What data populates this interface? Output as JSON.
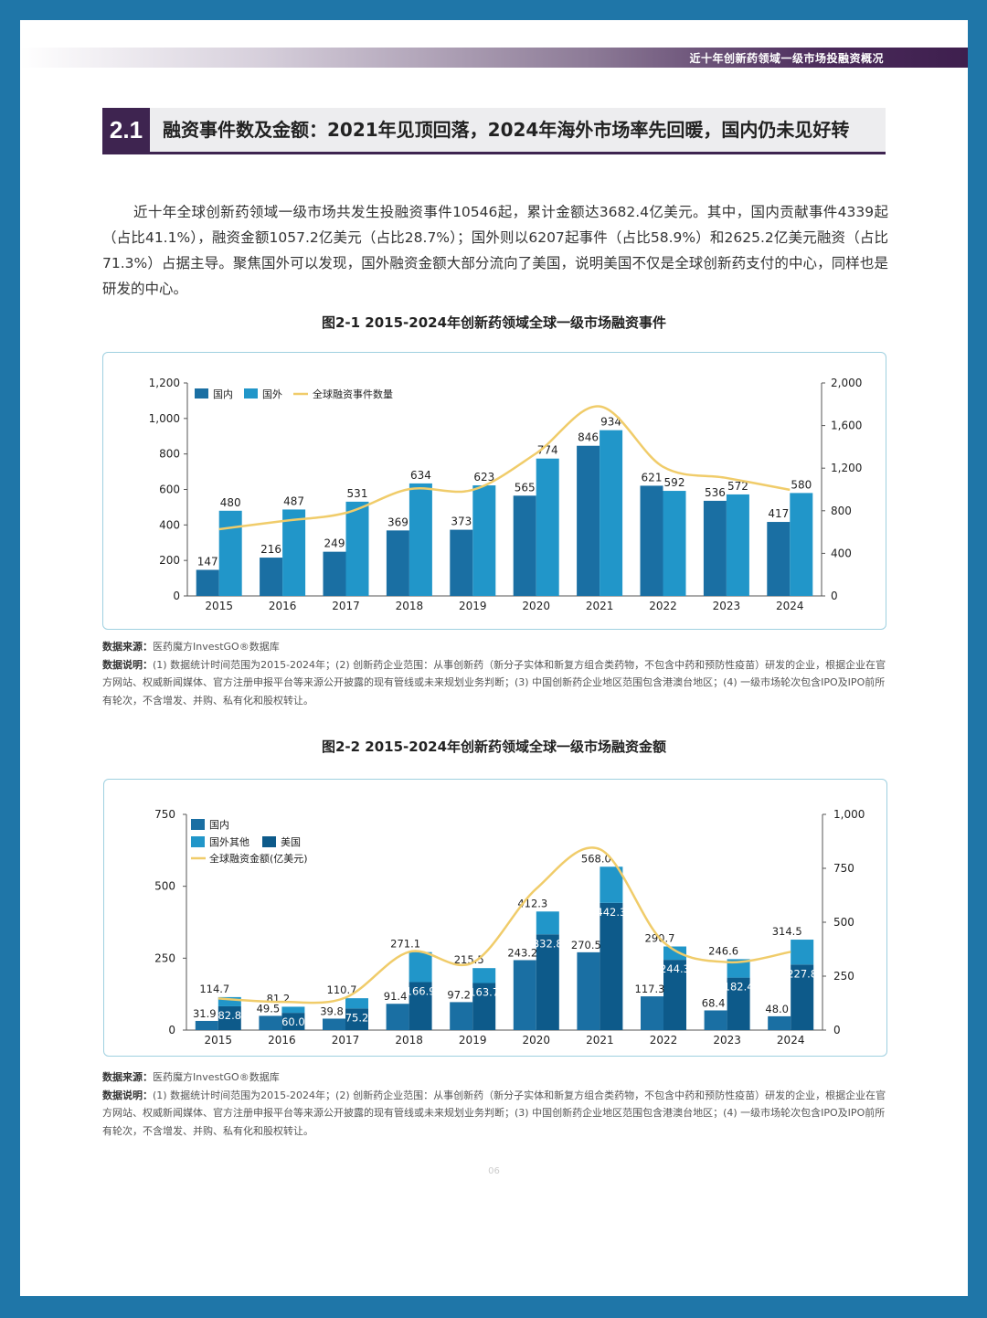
{
  "header": {
    "band_text": "近十年创新药领域一级市场投融资概况"
  },
  "section": {
    "number": "2.1",
    "title": "融资事件数及金额：2021年见顶回落，2024年海外市场率先回暖，国内仍未见好转"
  },
  "paragraph": "近十年全球创新药领域一级市场共发生投融资事件10546起，累计金额达3682.4亿美元。其中，国内贡献事件4339起（占比41.1%），融资金额1057.2亿美元（占比28.7%）；国外则以6207起事件（占比58.9%）和2625.2亿美元融资（占比71.3%）占据主导。聚焦国外可以发现，国外融资金额大部分流向了美国，说明美国不仅是全球创新药支付的中心，同样也是研发的中心。",
  "figure1": {
    "title": "图2-1 2015-2024年创新药领域全球一级市场融资事件",
    "source_label": "数据来源：",
    "source_text": "医药魔方InvestGO®数据库",
    "notes_label": "数据说明：",
    "notes_text": "(1) 数据统计时间范围为2015-2024年；(2) 创新药企业范围：从事创新药（新分子实体和新复方组合类药物，不包含中药和预防性疫苗）研发的企业，根据企业在官方网站、权威新闻媒体、官方注册申报平台等来源公开披露的现有管线或未来规划业务判断；(3) 中国创新药企业地区范围包含港澳台地区；(4) 一级市场轮次包含IPO及IPO前所有轮次，不含增发、并购、私有化和股权转让。"
  },
  "figure2": {
    "title": "图2-2 2015-2024年创新药领域全球一级市场融资金额",
    "source_label": "数据来源：",
    "source_text": "医药魔方InvestGO®数据库",
    "notes_label": "数据说明：",
    "notes_text": "(1) 数据统计时间范围为2015-2024年；(2) 创新药企业范围：从事创新药（新分子实体和新复方组合类药物，不包含中药和预防性疫苗）研发的企业，根据企业在官方网站、权威新闻媒体、官方注册申报平台等来源公开披露的现有管线或未来规划业务判断；(3) 中国创新药企业地区范围包含港澳台地区；(4) 一级市场轮次包含IPO及IPO前所有轮次，不含增发、并购、私有化和股权转让。"
  },
  "page_number": "06",
  "colors": {
    "domestic": "#1a6fa3",
    "overseas": "#2196c9",
    "usa": "#0d5a8a",
    "line": "#f0cc6a",
    "frame": "#9fd0e0"
  },
  "chart_data": [
    {
      "type": "bar",
      "categories": [
        "2015",
        "2016",
        "2017",
        "2018",
        "2019",
        "2020",
        "2021",
        "2022",
        "2023",
        "2024"
      ],
      "series": [
        {
          "name": "国内",
          "values": [
            147,
            216,
            249,
            369,
            373,
            565,
            846,
            621,
            536,
            417
          ]
        },
        {
          "name": "国外",
          "values": [
            480,
            487,
            531,
            634,
            623,
            774,
            934,
            592,
            572,
            580
          ]
        },
        {
          "name": "全球融资事件数量",
          "type": "line",
          "axis": "right",
          "values": [
            627,
            703,
            780,
            1003,
            996,
            1339,
            1780,
            1213,
            1108,
            997
          ]
        }
      ],
      "ylim": [
        0,
        1200
      ],
      "yticks": [
        "0",
        "200",
        "400",
        "600",
        "800",
        "1,000",
        "1,200"
      ],
      "y2lim": [
        0,
        2000
      ],
      "y2ticks": [
        "0",
        "400",
        "800",
        "1,200",
        "1,600",
        "2,000"
      ],
      "legend": "top-left"
    },
    {
      "type": "bar",
      "categories": [
        "2015",
        "2016",
        "2017",
        "2018",
        "2019",
        "2020",
        "2021",
        "2022",
        "2023",
        "2024"
      ],
      "series": [
        {
          "name": "国内",
          "values": [
            31.9,
            49.5,
            39.8,
            91.4,
            97.2,
            243.2,
            270.5,
            117.3,
            68.4,
            48.0
          ]
        },
        {
          "name": "美国",
          "values": [
            82.8,
            60.0,
            75.2,
            166.9,
            163.7,
            332.8,
            442.3,
            244.3,
            182.4,
            227.8
          ]
        },
        {
          "name": "国外其他",
          "values": [
            31.9,
            21.2,
            35.6,
            104.2,
            51.8,
            79.5,
            125.7,
            46.4,
            64.2,
            86.7
          ]
        },
        {
          "name": "全球融资金额(亿美元)",
          "type": "line",
          "axis": "right",
          "values": [
            146.6,
            130.7,
            150.5,
            362.5,
            312.7,
            655.5,
            838.5,
            408.0,
            315.0,
            362.5
          ]
        }
      ],
      "stack_totals": [
        "114.7",
        "81.2",
        "110.7",
        "271.1",
        "215.5",
        "412.3",
        "568.0",
        "290.7",
        "246.6",
        "314.5"
      ],
      "ylim": [
        0,
        750
      ],
      "yticks": [
        "0",
        "250",
        "500",
        "750"
      ],
      "y2lim": [
        0,
        1000
      ],
      "y2ticks": [
        "0",
        "250",
        "500",
        "750",
        "1,000"
      ],
      "legend": "top-left"
    }
  ]
}
